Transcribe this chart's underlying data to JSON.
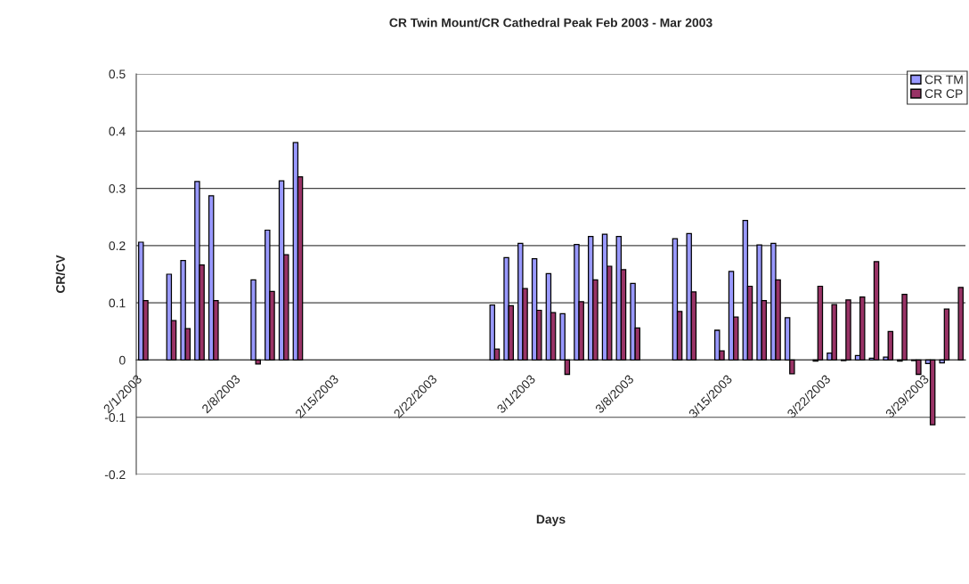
{
  "chart_data": {
    "type": "bar",
    "title": "CR Twin Mount/CR Cathedral Peak Feb 2003 - Mar 2003",
    "xlabel": "Days",
    "ylabel": "CR/CV",
    "x": [
      "2003-02-01T12:00",
      "2003-02-03T12:00",
      "2003-02-04T12:00",
      "2003-02-05T12:00",
      "2003-02-06T12:00",
      "2003-02-09T12:00",
      "2003-02-10T12:00",
      "2003-02-11T12:00",
      "2003-02-12T12:00",
      "2003-02-26T12:00",
      "2003-02-27T12:00",
      "2003-02-28T12:00",
      "2003-03-01T12:00",
      "2003-03-02T12:00",
      "2003-03-03T12:00",
      "2003-03-04T12:00",
      "2003-03-05T12:00",
      "2003-03-06T12:00",
      "2003-03-07T12:00",
      "2003-03-08T12:00",
      "2003-03-11T12:00",
      "2003-03-12T12:00",
      "2003-03-14T12:00",
      "2003-03-15T12:00",
      "2003-03-16T12:00",
      "2003-03-17T12:00",
      "2003-03-18T12:00",
      "2003-03-19T12:00",
      "2003-03-21T12:00",
      "2003-03-22T12:00",
      "2003-03-23T12:00",
      "2003-03-24T12:00",
      "2003-03-25T12:00",
      "2003-03-26T12:00",
      "2003-03-27T12:00",
      "2003-03-28T12:00",
      "2003-03-29T12:00",
      "2003-03-30T12:00",
      "2003-03-31T12:00"
    ],
    "series": [
      {
        "name": "CR TM",
        "color": "#9999ff",
        "values": [
          0.206,
          0.15,
          0.174,
          0.312,
          0.287,
          0.14,
          0.227,
          0.313,
          0.38,
          0.096,
          0.179,
          0.204,
          0.177,
          0.151,
          0.081,
          0.202,
          0.216,
          0.22,
          0.216,
          0.134,
          0.212,
          0.221,
          0.052,
          0.155,
          0.244,
          0.201,
          0.204,
          0.074,
          -0.002,
          0.012,
          -0.001,
          0.008,
          0.003,
          0.005,
          -0.002,
          -0.001,
          -0.006,
          -0.005,
          null
        ]
      },
      {
        "name": "CR CP",
        "color": "#993366",
        "values": [
          0.104,
          0.069,
          0.055,
          0.166,
          0.104,
          -0.007,
          0.12,
          0.184,
          0.32,
          0.019,
          0.095,
          0.125,
          0.087,
          0.083,
          -0.025,
          0.102,
          0.14,
          0.164,
          0.158,
          0.056,
          0.085,
          0.119,
          0.016,
          0.075,
          0.129,
          0.104,
          0.14,
          -0.024,
          0.129,
          0.097,
          0.105,
          0.11,
          0.172,
          0.05,
          0.115,
          -0.025,
          -0.113,
          0.089,
          0.127
        ]
      }
    ],
    "xlim": [
      "2003-02-01",
      "2003-04-01"
    ],
    "xticks": [
      {
        "value": "2003-02-01",
        "label": "2/1/2003"
      },
      {
        "value": "2003-02-08",
        "label": "2/8/2003"
      },
      {
        "value": "2003-02-15",
        "label": "2/15/2003"
      },
      {
        "value": "2003-02-22",
        "label": "2/22/2003"
      },
      {
        "value": "2003-03-01",
        "label": "3/1/2003"
      },
      {
        "value": "2003-03-08",
        "label": "3/8/2003"
      },
      {
        "value": "2003-03-15",
        "label": "3/15/2003"
      },
      {
        "value": "2003-03-22",
        "label": "3/22/2003"
      },
      {
        "value": "2003-03-29",
        "label": "3/29/2003"
      }
    ],
    "ylim": [
      -0.2,
      0.5
    ],
    "yticks": [
      {
        "value": -0.2,
        "label": "-0.2"
      },
      {
        "value": -0.1,
        "label": "-0.1"
      },
      0,
      0.1,
      0.2,
      0.3,
      0.4,
      0.5
    ],
    "grid": "y",
    "legend": "top right"
  }
}
